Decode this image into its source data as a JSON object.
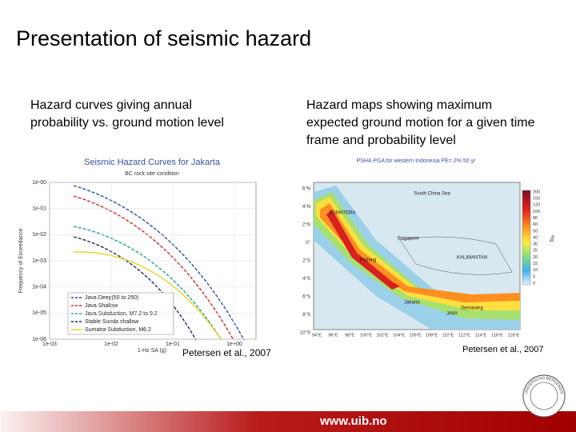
{
  "header": {
    "title": "Presentation of seismic hazard"
  },
  "left": {
    "caption": [
      "Hazard curves giving annual",
      "probability vs. ground motion level"
    ],
    "credit": "Petersen et al., 2007",
    "figure": {
      "title": "Seismic Hazard Curves for Jakarta",
      "subtitle": "BC rock site condition",
      "y_label": "Frequency of Exceedance",
      "x_label": "1-Hz SA (g)",
      "yticks": [
        "1e-00",
        "1e-01",
        "1e-02",
        "1e-03",
        "1e-04",
        "1e-05",
        "1e-06"
      ],
      "xticks": [
        "1e-03",
        "1e-02",
        "1e-01",
        "1e+00"
      ],
      "legend": [
        "Java Deep(50 to 250)",
        "Java Shallow",
        "Java Subduction, M7.2 to 9.2",
        "Stable Sunda shallow",
        "Sumatra Subduction, M6.2"
      ]
    }
  },
  "right": {
    "caption": [
      "Hazard maps showing maximum",
      "expected ground motion for a given time",
      "frame and probability level"
    ],
    "credit": "Petersen et al., 2007",
    "map": {
      "title": "PSHA PGA for western Indonesia PE= 2% 50 yr",
      "lat_ticks": [
        "6°N",
        "4°N",
        "2°N",
        "0°",
        "2°S",
        "4°S",
        "6°S",
        "8°S",
        "10°S"
      ],
      "lon_ticks": [
        "94°E",
        "96°E",
        "98°E",
        "100°E",
        "102°E",
        "104°E",
        "106°E",
        "108°E",
        "110°E",
        "112°E",
        "114°E",
        "116°E",
        "118°E"
      ],
      "places": [
        "South China Sea",
        "SUMATERA",
        "Singapore",
        "KALIMANTAN",
        "Padang",
        "Jakarta",
        "JAVA",
        "Semarang"
      ],
      "scale_unit": "%g",
      "scale": [
        "200",
        "150",
        "120",
        "100",
        "80",
        "60",
        "50",
        "40",
        "30",
        "25",
        "20",
        "15",
        "10",
        "5",
        "0"
      ]
    }
  },
  "footer": {
    "url": "www.uib.no",
    "logo": "UNIVERSITAS BERGENSIS"
  }
}
